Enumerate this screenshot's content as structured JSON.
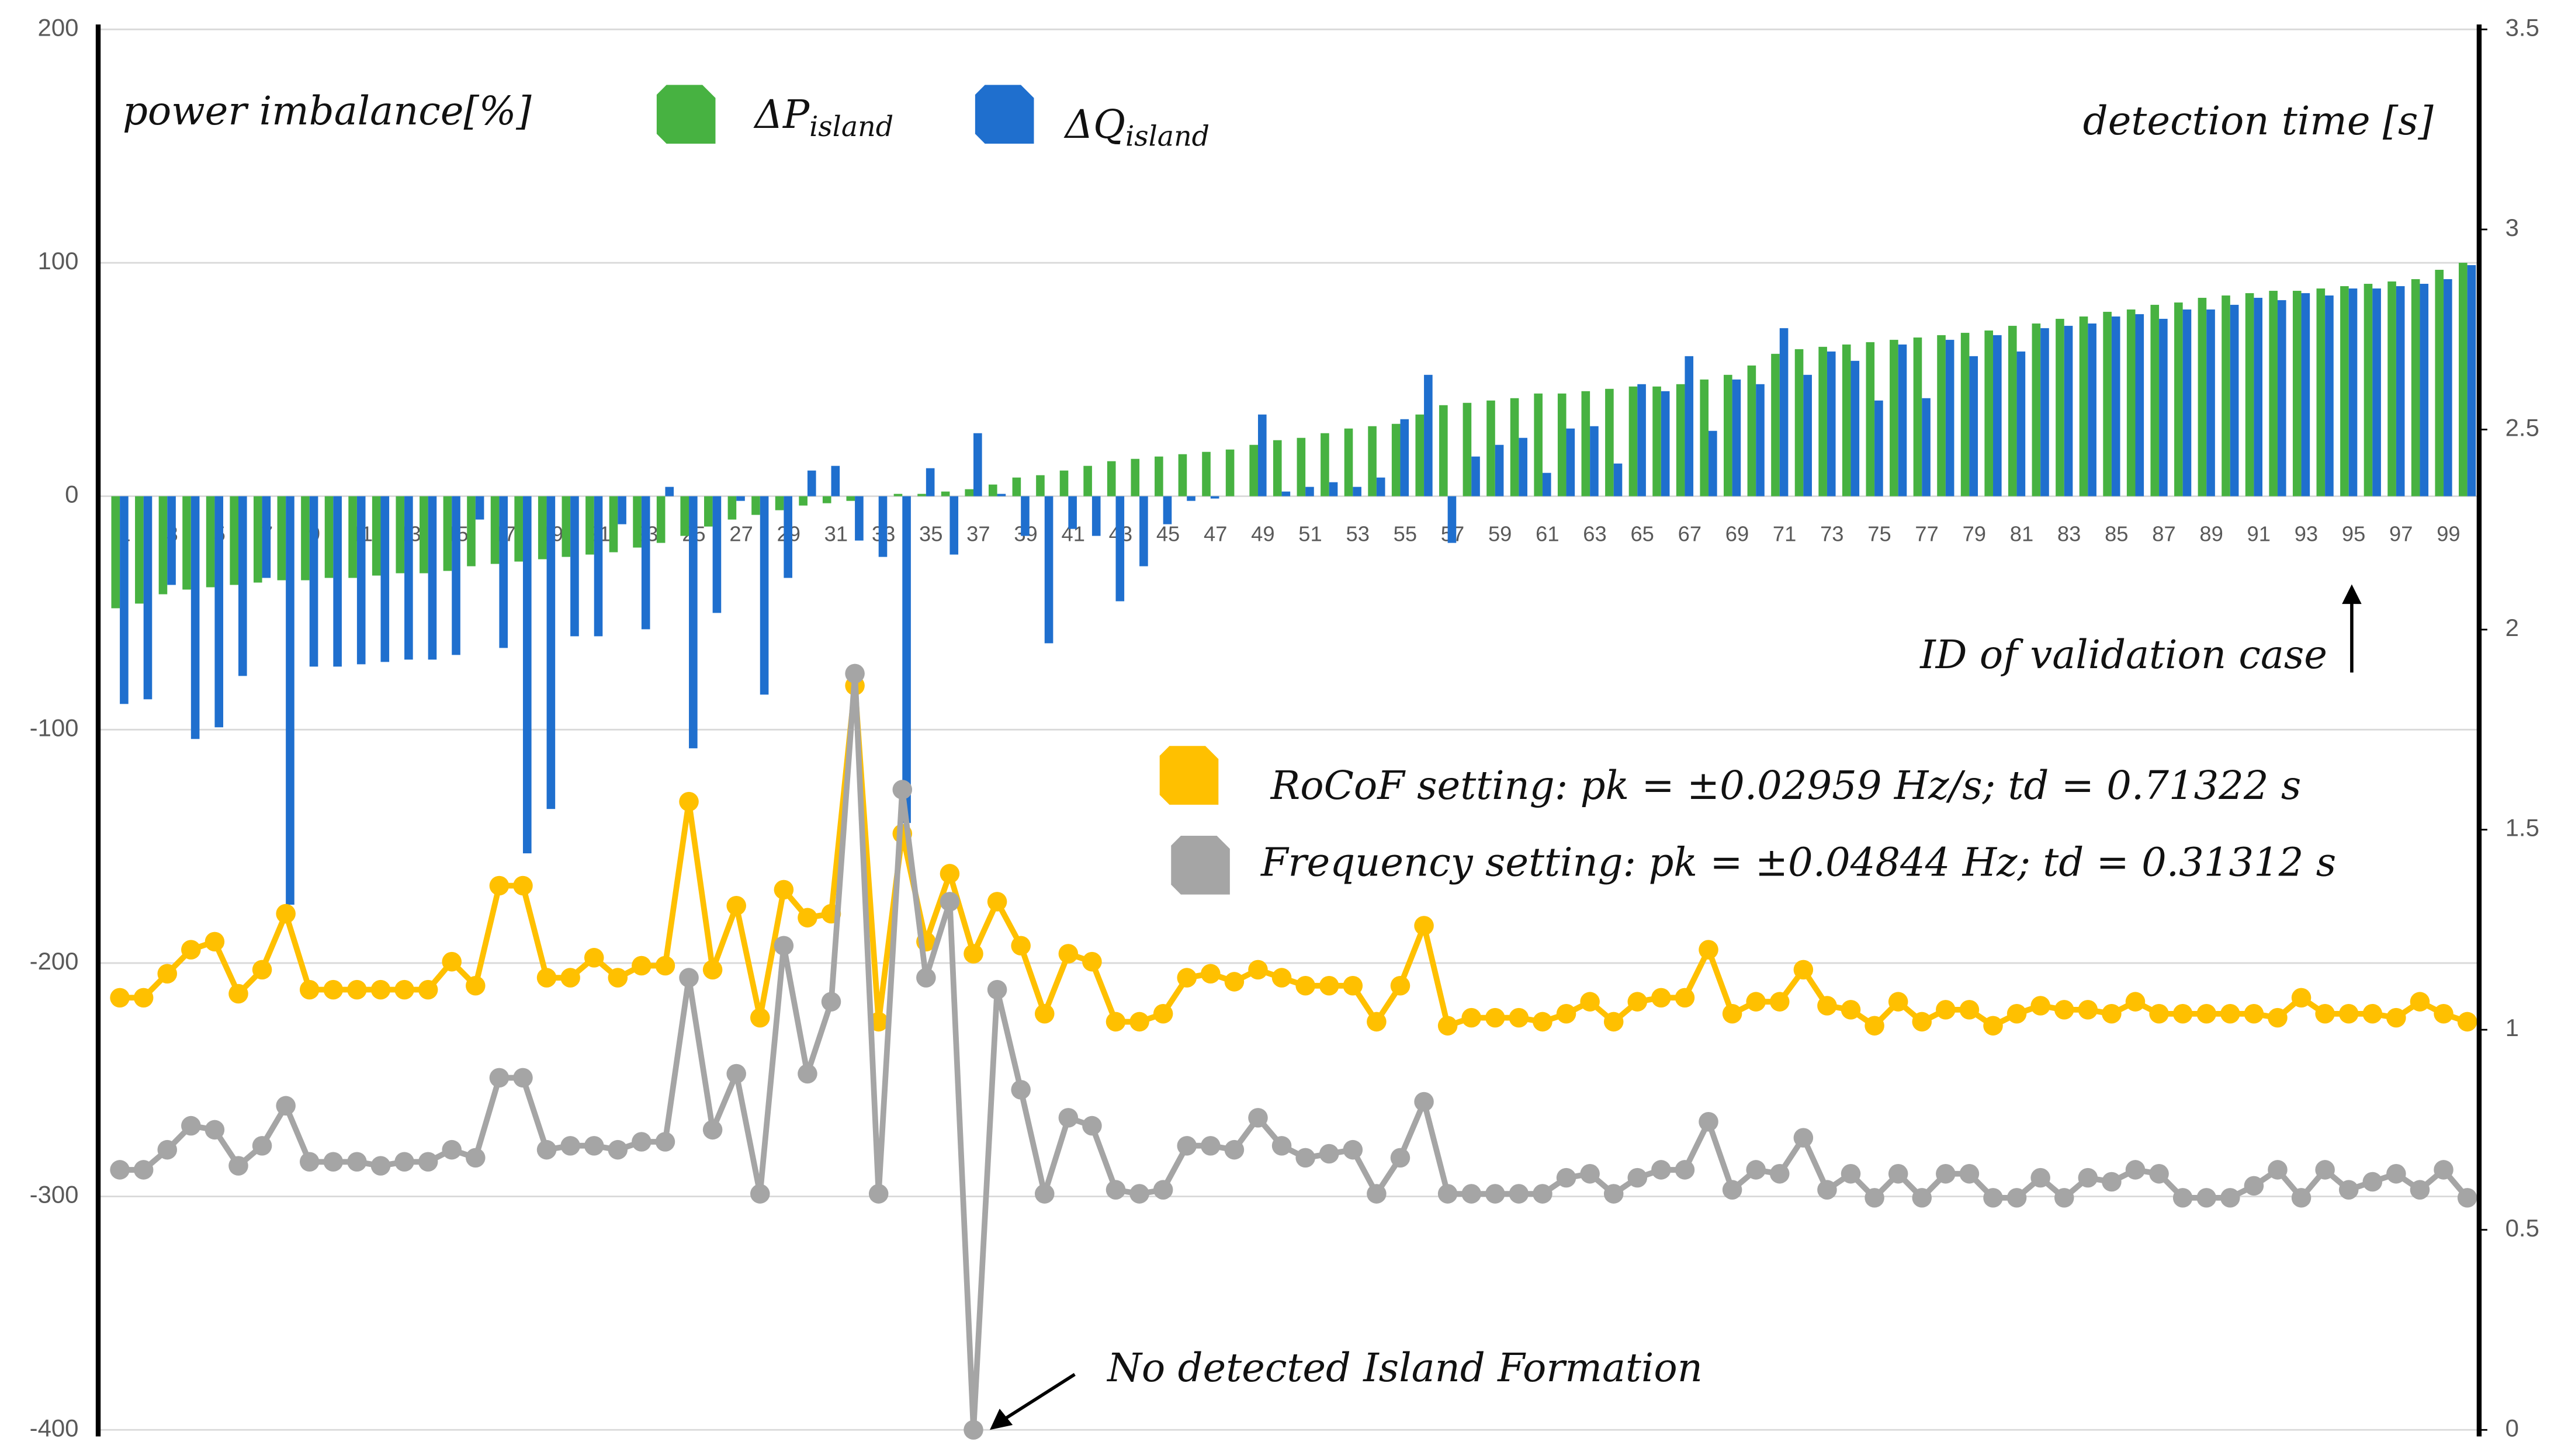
{
  "chart_data": {
    "type": "bar",
    "annotations": {
      "left_axis": "power imbalance[%]",
      "right_axis": "detection time [s]",
      "x_axis": "ID of validation case",
      "note": "No detected Island Formation"
    },
    "categories": [
      "1",
      null,
      "3",
      null,
      "5",
      null,
      "7",
      null,
      "9",
      null,
      "11",
      null,
      "13",
      null,
      "15",
      null,
      "17",
      null,
      "19",
      null,
      "21",
      null,
      "23",
      null,
      "25",
      null,
      "27",
      null,
      "29",
      null,
      "31",
      null,
      "33",
      null,
      "35",
      null,
      "37",
      null,
      "39",
      null,
      "41",
      null,
      "43",
      null,
      "45",
      null,
      "47",
      null,
      "49",
      null,
      "51",
      null,
      "53",
      null,
      "55",
      null,
      "57",
      null,
      "59",
      null,
      "61",
      null,
      "63",
      null,
      "65",
      null,
      "67",
      null,
      "69",
      null,
      "71",
      null,
      "73",
      null,
      "75",
      null,
      "77",
      null,
      "79",
      null,
      "81",
      null,
      "83",
      null,
      "85",
      null,
      "87",
      null,
      "89",
      null,
      "91",
      null,
      "93",
      null,
      "95",
      null,
      "97",
      null,
      "99",
      null
    ],
    "ylim": [
      -400,
      200
    ],
    "yticks": [
      -400,
      -300,
      -200,
      -100,
      0,
      100,
      200
    ],
    "y2lim": [
      0,
      3.5
    ],
    "y2ticks": [
      0,
      0.5,
      1,
      1.5,
      2,
      2.5,
      3,
      3.5
    ],
    "grid": true,
    "series": [
      {
        "name": "ΔP_island",
        "type": "bar",
        "color": "#47b241",
        "values": [
          -48,
          -46,
          -42,
          -40,
          -39,
          -38,
          -37,
          -36,
          -36,
          -35,
          -35,
          -34,
          -33,
          -33,
          -32,
          -30,
          -29,
          -28,
          -27,
          -26,
          -25,
          -24,
          -22,
          -20,
          -17,
          -13,
          -10,
          -8,
          -6,
          -4,
          -3,
          -2,
          0,
          1,
          1,
          2,
          3,
          5,
          8,
          9,
          11,
          13,
          15,
          16,
          17,
          18,
          19,
          20,
          22,
          24,
          25,
          27,
          29,
          30,
          31,
          35,
          39,
          40,
          41,
          42,
          44,
          44,
          45,
          46,
          47,
          47,
          48,
          50,
          52,
          56,
          61,
          63,
          64,
          65,
          66,
          67,
          68,
          69,
          70,
          71,
          73,
          74,
          76,
          77,
          79,
          80,
          82,
          83,
          85,
          86,
          87,
          88,
          88,
          89,
          90,
          91,
          92,
          93,
          97,
          100
        ]
      },
      {
        "name": "ΔQ_island",
        "type": "bar",
        "color": "#1f6fce",
        "values": [
          -89,
          -87,
          -38,
          -104,
          -99,
          -77,
          -35,
          -175,
          -73,
          -73,
          -72,
          -71,
          -70,
          -70,
          -68,
          -10,
          -65,
          -153,
          -134,
          -60,
          -60,
          -12,
          -57,
          4,
          -108,
          -50,
          -2,
          -85,
          -35,
          11,
          13,
          -19,
          -26,
          -140,
          12,
          -25,
          27,
          1,
          -17,
          -63,
          -14,
          -17,
          -45,
          -30,
          -12,
          -2,
          -1,
          0,
          35,
          2,
          4,
          6,
          4,
          8,
          33,
          52,
          -20,
          17,
          22,
          25,
          10,
          29,
          30,
          14,
          48,
          45,
          60,
          28,
          50,
          48,
          72,
          52,
          62,
          58,
          41,
          65,
          42,
          67,
          60,
          69,
          62,
          72,
          73,
          74,
          77,
          78,
          76,
          80,
          80,
          82,
          85,
          84,
          87,
          86,
          89,
          89,
          90,
          91,
          93,
          99
        ]
      },
      {
        "name": "RoCoF setting: pk = ±0.02959 Hz/s; td = 0.71322 s",
        "type": "line",
        "axis": "y2",
        "color": "#ffc000",
        "values": [
          1.08,
          1.08,
          1.14,
          1.2,
          1.22,
          1.09,
          1.15,
          1.29,
          1.1,
          1.1,
          1.1,
          1.1,
          1.1,
          1.1,
          1.17,
          1.11,
          1.36,
          1.36,
          1.13,
          1.13,
          1.18,
          1.13,
          1.16,
          1.16,
          1.57,
          1.15,
          1.31,
          1.03,
          1.35,
          1.28,
          1.29,
          1.86,
          1.02,
          1.49,
          1.22,
          1.39,
          1.19,
          1.32,
          1.21,
          1.04,
          1.19,
          1.17,
          1.02,
          1.02,
          1.04,
          1.13,
          1.14,
          1.12,
          1.15,
          1.13,
          1.11,
          1.11,
          1.11,
          1.02,
          1.11,
          1.26,
          1.01,
          1.03,
          1.03,
          1.03,
          1.02,
          1.04,
          1.07,
          1.02,
          1.07,
          1.08,
          1.08,
          1.2,
          1.04,
          1.07,
          1.07,
          1.15,
          1.06,
          1.05,
          1.01,
          1.07,
          1.02,
          1.05,
          1.05,
          1.01,
          1.04,
          1.06,
          1.05,
          1.05,
          1.04,
          1.07,
          1.04,
          1.04,
          1.04,
          1.04,
          1.04,
          1.03,
          1.08,
          1.04,
          1.04,
          1.04,
          1.03,
          1.07,
          1.04,
          1.02
        ]
      },
      {
        "name": "Frequency setting: pk = ±0.04844 Hz; td = 0.31312 s",
        "type": "line",
        "axis": "y2",
        "color": "#a5a5a5",
        "values": [
          0.65,
          0.65,
          0.7,
          0.76,
          0.75,
          0.66,
          0.71,
          0.81,
          0.67,
          0.67,
          0.67,
          0.66,
          0.67,
          0.67,
          0.7,
          0.68,
          0.88,
          0.88,
          0.7,
          0.71,
          0.71,
          0.7,
          0.72,
          0.72,
          1.13,
          0.75,
          0.89,
          0.59,
          1.21,
          0.89,
          1.07,
          1.89,
          0.59,
          1.6,
          1.13,
          1.32,
          0,
          1.1,
          0.85,
          0.59,
          0.78,
          0.76,
          0.6,
          0.59,
          0.6,
          0.71,
          0.71,
          0.7,
          0.78,
          0.71,
          0.68,
          0.69,
          0.7,
          0.59,
          0.68,
          0.82,
          0.59,
          0.59,
          0.59,
          0.59,
          0.59,
          0.63,
          0.64,
          0.59,
          0.63,
          0.65,
          0.65,
          0.77,
          0.6,
          0.65,
          0.64,
          0.73,
          0.6,
          0.64,
          0.58,
          0.64,
          0.58,
          0.64,
          0.64,
          0.58,
          0.58,
          0.63,
          0.58,
          0.63,
          0.62,
          0.65,
          0.64,
          0.58,
          0.58,
          0.58,
          0.61,
          0.65,
          0.58,
          0.65,
          0.6,
          0.62,
          0.64,
          0.6,
          0.65,
          0.58
        ]
      }
    ]
  }
}
